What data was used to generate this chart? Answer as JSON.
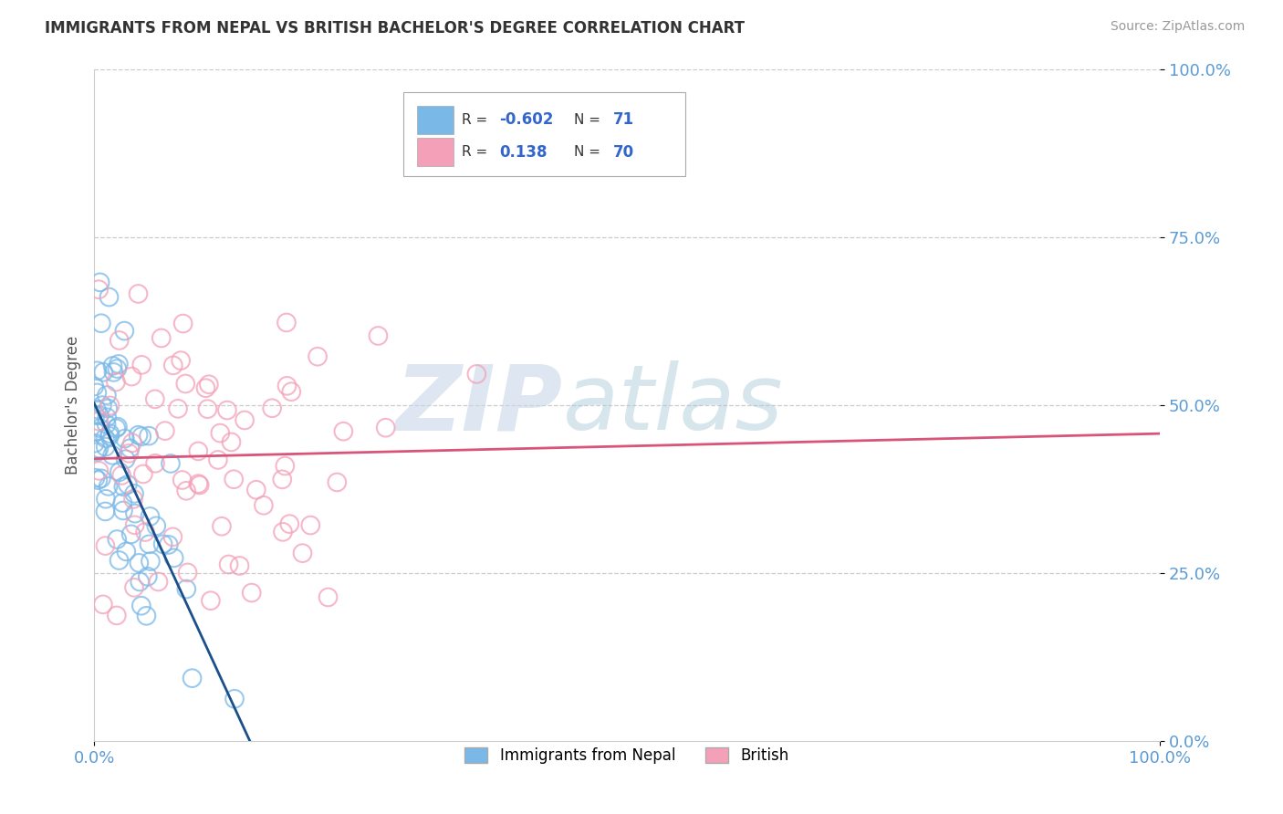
{
  "title": "IMMIGRANTS FROM NEPAL VS BRITISH BACHELOR'S DEGREE CORRELATION CHART",
  "source_text": "Source: ZipAtlas.com",
  "ylabel": "Bachelor's Degree",
  "watermark_part1": "ZIP",
  "watermark_part2": "atlas",
  "series1_label": "Immigrants from Nepal",
  "series2_label": "British",
  "color1": "#7ab8e8",
  "color2": "#f4a0b8",
  "line1_color": "#1a4f8a",
  "line2_color": "#d9547a",
  "axis_label_color": "#5b9bd5",
  "bg_color": "#ffffff",
  "grid_color": "#cccccc",
  "title_color": "#333333",
  "source_color": "#999999",
  "xlim": [
    0.0,
    1.0
  ],
  "ylim": [
    0.0,
    1.0
  ],
  "ytick_positions": [
    0.0,
    0.25,
    0.5,
    0.75,
    1.0
  ],
  "ytick_labels": [
    "0.0%",
    "25.0%",
    "50.0%",
    "75.0%",
    "100.0%"
  ],
  "xtick_positions": [
    0.0,
    1.0
  ],
  "xtick_labels": [
    "0.0%",
    "100.0%"
  ],
  "legend_r1": "-0.602",
  "legend_n1": "71",
  "legend_r2": "0.138",
  "legend_n2": "70",
  "nepal_seed": 10,
  "british_seed": 20,
  "n_nepal": 71,
  "n_british": 70
}
